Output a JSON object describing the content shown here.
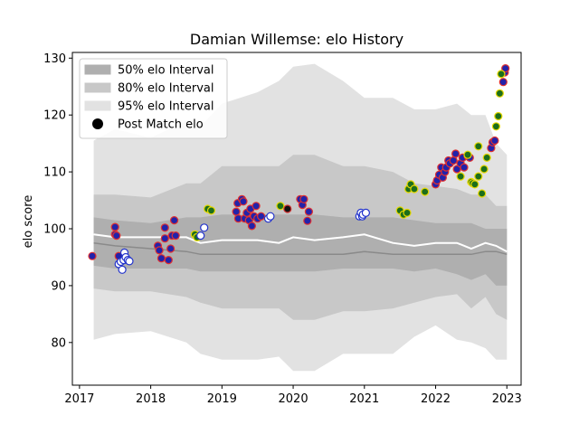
{
  "chart_data": {
    "type": "scatter",
    "title": "Damian Willemse: elo History",
    "xlabel": "",
    "ylabel": "elo score",
    "xlim": [
      2016.9,
      2023.2
    ],
    "ylim": [
      72.5,
      131
    ],
    "x_ticks": [
      2017,
      2018,
      2019,
      2020,
      2021,
      2022,
      2023
    ],
    "x_tick_labels": [
      "2017",
      "2018",
      "2019",
      "2020",
      "2021",
      "2022",
      "2023"
    ],
    "y_ticks": [
      80,
      90,
      100,
      110,
      120,
      130
    ],
    "y_tick_labels": [
      "80",
      "90",
      "100",
      "110",
      "120",
      "130"
    ],
    "grid": false,
    "legend_placement": "top-left",
    "legend": [
      {
        "label": "50% elo Interval",
        "color": "#afafaf",
        "kind": "patch"
      },
      {
        "label": "80% elo Interval",
        "color": "#c8c8c8",
        "kind": "patch"
      },
      {
        "label": "95% elo Interval",
        "color": "#e2e2e2",
        "kind": "patch"
      },
      {
        "label": "Post Match elo",
        "color": "#000000",
        "kind": "marker"
      }
    ],
    "bands": {
      "x": [
        2017.2,
        2017.5,
        2018.0,
        2018.5,
        2018.7,
        2019.0,
        2019.5,
        2019.8,
        2020.0,
        2020.3,
        2020.7,
        2021.0,
        2021.4,
        2021.7,
        2022.0,
        2022.3,
        2022.5,
        2022.7,
        2022.85,
        2023.0
      ],
      "p95_low": [
        80.5,
        81.5,
        82,
        80,
        78,
        77,
        77,
        77.5,
        75,
        75,
        78,
        78,
        78,
        81,
        83,
        80.5,
        80,
        79,
        77,
        77
      ],
      "p80_low": [
        89.5,
        89,
        89,
        88,
        87,
        86,
        86,
        86,
        84,
        84,
        85.5,
        85.5,
        86,
        87,
        88,
        88.5,
        86,
        88,
        85,
        84
      ],
      "p50_low": [
        93.5,
        93,
        93,
        93,
        92.5,
        92.5,
        92.5,
        92.5,
        92.5,
        92.5,
        93,
        93,
        93,
        92.5,
        93,
        92,
        91,
        92,
        90,
        90
      ],
      "median": [
        97.5,
        97,
        96.5,
        96,
        95.5,
        95.5,
        95.5,
        95.5,
        95.5,
        95.5,
        95.5,
        96,
        95.5,
        95.5,
        95.5,
        95.5,
        95.5,
        96,
        96,
        95.5
      ],
      "mean": [
        99,
        98.5,
        98.5,
        98.5,
        97.5,
        98,
        98,
        97.5,
        98.5,
        98,
        98.5,
        99,
        97.5,
        97,
        97.5,
        97.5,
        96.5,
        97.5,
        97,
        96
      ],
      "p50_high": [
        102,
        101.5,
        101,
        102,
        102,
        102.5,
        102.5,
        102.5,
        102.5,
        102.5,
        102,
        102,
        102,
        101.5,
        101,
        101,
        101,
        100,
        100,
        100
      ],
      "p80_high": [
        106,
        106,
        105.5,
        108,
        108,
        111,
        111,
        111,
        113,
        113,
        111,
        111,
        110,
        108,
        107.5,
        107,
        106,
        106,
        104,
        104
      ],
      "p95_high": [
        115.5,
        117.5,
        116,
        119,
        118,
        122,
        124,
        126,
        128.5,
        129,
        126,
        123,
        123,
        121,
        121,
        122,
        120,
        120,
        115,
        113
      ]
    },
    "series": [
      {
        "marker": "red-edge-blue-fill",
        "points": [
          [
            2017.18,
            95.2
          ],
          [
            2017.5,
            100.3
          ],
          [
            2017.5,
            99
          ],
          [
            2017.52,
            98.8
          ],
          [
            2017.55,
            95.2
          ],
          [
            2018.1,
            97
          ],
          [
            2018.12,
            96.2
          ],
          [
            2018.15,
            94.8
          ],
          [
            2018.2,
            100.2
          ],
          [
            2018.2,
            98.3
          ],
          [
            2018.25,
            94.5
          ],
          [
            2018.28,
            96.5
          ],
          [
            2018.3,
            98.8
          ],
          [
            2018.33,
            101.5
          ],
          [
            2018.35,
            98.8
          ],
          [
            2019.2,
            103
          ],
          [
            2019.22,
            104.5
          ],
          [
            2019.23,
            101.8
          ],
          [
            2019.28,
            105.2
          ],
          [
            2019.3,
            104.8
          ],
          [
            2019.32,
            101.8
          ],
          [
            2019.35,
            102.8
          ],
          [
            2019.38,
            101.5
          ],
          [
            2019.4,
            103.5
          ],
          [
            2019.42,
            100.5
          ],
          [
            2019.45,
            102.2
          ],
          [
            2019.48,
            104
          ],
          [
            2019.5,
            101.8
          ],
          [
            2019.55,
            102.2
          ],
          [
            2020.1,
            105.2
          ],
          [
            2020.13,
            104.2
          ],
          [
            2020.15,
            105.2
          ],
          [
            2020.2,
            101.4
          ],
          [
            2020.22,
            103
          ],
          [
            2022.0,
            107.8
          ],
          [
            2022.02,
            108.5
          ],
          [
            2022.05,
            109.5
          ],
          [
            2022.08,
            110.8
          ],
          [
            2022.1,
            109
          ],
          [
            2022.13,
            110
          ],
          [
            2022.15,
            110.8
          ],
          [
            2022.18,
            112
          ],
          [
            2022.2,
            111.5
          ],
          [
            2022.25,
            112
          ],
          [
            2022.28,
            113.2
          ],
          [
            2022.3,
            110.5
          ],
          [
            2022.35,
            111.5
          ],
          [
            2022.38,
            112.5
          ],
          [
            2022.4,
            110.8
          ],
          [
            2022.45,
            112.8
          ],
          [
            2022.48,
            112.5
          ],
          [
            2022.78,
            114.2
          ],
          [
            2022.8,
            115.2
          ],
          [
            2022.83,
            115.5
          ],
          [
            2022.95,
            125.8
          ],
          [
            2022.97,
            127.5
          ],
          [
            2022.98,
            128.2
          ]
        ]
      },
      {
        "marker": "yellow-edge-green-fill",
        "points": [
          [
            2018.62,
            99
          ],
          [
            2018.65,
            98.5
          ],
          [
            2018.8,
            103.5
          ],
          [
            2018.85,
            103.2
          ],
          [
            2019.82,
            104
          ],
          [
            2021.5,
            103.2
          ],
          [
            2021.55,
            102.5
          ],
          [
            2021.6,
            102.8
          ],
          [
            2021.62,
            107
          ],
          [
            2021.65,
            107.8
          ],
          [
            2021.7,
            107
          ],
          [
            2021.85,
            106.5
          ],
          [
            2022.35,
            109.2
          ],
          [
            2022.45,
            113
          ],
          [
            2022.5,
            108.2
          ],
          [
            2022.52,
            108
          ],
          [
            2022.55,
            107.8
          ],
          [
            2022.6,
            109.2
          ],
          [
            2022.6,
            114.5
          ],
          [
            2022.65,
            106.2
          ],
          [
            2022.68,
            110.5
          ],
          [
            2022.72,
            112.5
          ],
          [
            2022.85,
            118
          ],
          [
            2022.88,
            119.8
          ],
          [
            2022.9,
            123.8
          ],
          [
            2022.92,
            127.2
          ]
        ]
      },
      {
        "marker": "blue-edge-white-fill",
        "points": [
          [
            2017.55,
            93.8
          ],
          [
            2017.58,
            94.2
          ],
          [
            2017.6,
            92.8
          ],
          [
            2017.62,
            94.5
          ],
          [
            2017.63,
            95.8
          ],
          [
            2017.65,
            95
          ],
          [
            2017.68,
            94.5
          ],
          [
            2017.7,
            94.3
          ],
          [
            2018.7,
            98.8
          ],
          [
            2018.75,
            100.2
          ],
          [
            2019.65,
            101.8
          ],
          [
            2019.68,
            102.2
          ],
          [
            2020.93,
            102.2
          ],
          [
            2020.95,
            102.8
          ],
          [
            2020.97,
            102.2
          ],
          [
            2020.98,
            102.5
          ],
          [
            2021.02,
            102.8
          ]
        ]
      },
      {
        "marker": "red-edge-black-fill",
        "points": [
          [
            2019.92,
            103.5
          ]
        ]
      }
    ]
  }
}
